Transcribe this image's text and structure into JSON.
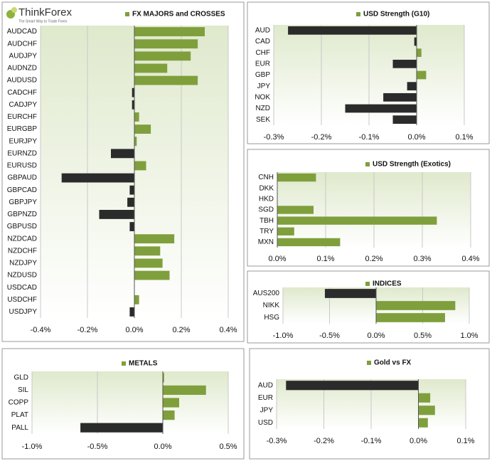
{
  "logo": {
    "name": "ThinkForex",
    "tagline": "The Smart Way to Trade Forex"
  },
  "chart_data": [
    {
      "type": "bar",
      "orientation": "horizontal",
      "title": "FX MAJORS and CROSSES",
      "categories": [
        "AUDCAD",
        "AUDCHF",
        "AUDJPY",
        "AUDNZD",
        "AUDUSD",
        "CADCHF",
        "CADJPY",
        "EURCHF",
        "EURGBP",
        "EURJPY",
        "EURNZD",
        "EURUSD",
        "GBPAUD",
        "GBPCAD",
        "GBPJPY",
        "GBPNZD",
        "GBPUSD",
        "NZDCAD",
        "NZDCHF",
        "NZDJPY",
        "NZDUSD",
        "USDCAD",
        "USDCHF",
        "USDJPY"
      ],
      "values": [
        0.3,
        0.27,
        0.24,
        0.14,
        0.27,
        -0.01,
        -0.01,
        0.02,
        0.07,
        0.01,
        -0.1,
        0.05,
        -0.31,
        -0.02,
        -0.03,
        -0.15,
        -0.02,
        0.17,
        0.11,
        0.12,
        0.15,
        0.0,
        0.02,
        -0.02
      ],
      "color": "#7f9f3c",
      "negative_color": "#2b2b2b",
      "grid": true,
      "xlim": [
        -0.4,
        0.4
      ],
      "xticks": [
        {
          "value": -0.4,
          "label": "-0.4%"
        },
        {
          "value": -0.2,
          "label": "-0.2%"
        },
        {
          "value": 0,
          "label": "0.0%"
        },
        {
          "value": 0.2,
          "label": "0.2%"
        },
        {
          "value": 0.4,
          "label": "0.4%"
        }
      ]
    },
    {
      "type": "bar",
      "orientation": "horizontal",
      "title": "USD Strength (G10)",
      "categories": [
        "AUD",
        "CAD",
        "CHF",
        "EUR",
        "GBP",
        "JPY",
        "NOK",
        "NZD",
        "SEK"
      ],
      "values": [
        -0.27,
        -0.005,
        0.01,
        -0.05,
        0.02,
        -0.02,
        -0.07,
        -0.15,
        -0.05
      ],
      "color": "#7f9f3c",
      "negative_color": "#2b2b2b",
      "grid": true,
      "xlim": [
        -0.3,
        0.1
      ],
      "xticks": [
        {
          "value": -0.3,
          "label": "-0.3%"
        },
        {
          "value": -0.2,
          "label": "-0.2%"
        },
        {
          "value": -0.1,
          "label": "-0.1%"
        },
        {
          "value": 0,
          "label": "0.0%"
        },
        {
          "value": 0.1,
          "label": "0.1%"
        }
      ]
    },
    {
      "type": "bar",
      "orientation": "horizontal",
      "title": "USD Strength (Exotics)",
      "categories": [
        "CNH",
        "DKK",
        "HKD",
        "SGD",
        "TBH",
        "TRY",
        "MXN"
      ],
      "values": [
        0.08,
        0.0,
        0.0,
        0.075,
        0.33,
        0.035,
        0.13
      ],
      "color": "#7f9f3c",
      "negative_color": "#2b2b2b",
      "grid": true,
      "xlim": [
        0,
        0.4
      ],
      "xticks": [
        {
          "value": 0,
          "label": "0.0%"
        },
        {
          "value": 0.1,
          "label": "0.1%"
        },
        {
          "value": 0.2,
          "label": "0.2%"
        },
        {
          "value": 0.3,
          "label": "0.3%"
        },
        {
          "value": 0.4,
          "label": "0.4%"
        }
      ]
    },
    {
      "type": "bar",
      "orientation": "horizontal",
      "title": "INDICES",
      "categories": [
        "AUS200",
        "NIKK",
        "HSG"
      ],
      "values": [
        -0.55,
        0.85,
        0.74
      ],
      "color": "#7f9f3c",
      "negative_color": "#2b2b2b",
      "grid": true,
      "xlim": [
        -1.0,
        1.0
      ],
      "xticks": [
        {
          "value": -1.0,
          "label": "-1.0%"
        },
        {
          "value": -0.5,
          "label": "-0.5%"
        },
        {
          "value": 0,
          "label": "0.0%"
        },
        {
          "value": 0.5,
          "label": "0.5%"
        },
        {
          "value": 1.0,
          "label": "1.0%"
        }
      ]
    },
    {
      "type": "bar",
      "orientation": "horizontal",
      "title": "METALS",
      "categories": [
        "GLD",
        "SIL",
        "COPP",
        "PLAT",
        "PALL"
      ],
      "values": [
        0.01,
        0.33,
        0.125,
        0.09,
        -0.63
      ],
      "color": "#7f9f3c",
      "negative_color": "#2b2b2b",
      "grid": true,
      "xlim": [
        -1.0,
        0.5
      ],
      "xticks": [
        {
          "value": -1.0,
          "label": "-1.0%"
        },
        {
          "value": -0.5,
          "label": "-0.5%"
        },
        {
          "value": 0,
          "label": "0.0%"
        },
        {
          "value": 0.5,
          "label": "0.5%"
        }
      ]
    },
    {
      "type": "bar",
      "orientation": "horizontal",
      "title": "Gold vs FX",
      "categories": [
        "AUD",
        "EUR",
        "JPY",
        "USD"
      ],
      "values": [
        -0.28,
        0.025,
        0.035,
        0.02
      ],
      "color": "#7f9f3c",
      "negative_color": "#2b2b2b",
      "grid": true,
      "xlim": [
        -0.3,
        0.1
      ],
      "xticks": [
        {
          "value": -0.3,
          "label": "-0.3%"
        },
        {
          "value": -0.2,
          "label": "-0.2%"
        },
        {
          "value": -0.1,
          "label": "-0.1%"
        },
        {
          "value": 0,
          "label": "0.0%"
        },
        {
          "value": 0.1,
          "label": "0.1%"
        }
      ]
    }
  ]
}
